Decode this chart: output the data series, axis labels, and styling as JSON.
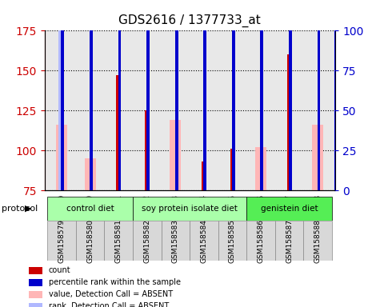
{
  "title": "GDS2616 / 1377733_at",
  "samples": [
    "GSM158579",
    "GSM158580",
    "GSM158581",
    "GSM158582",
    "GSM158583",
    "GSM158584",
    "GSM158585",
    "GSM158586",
    "GSM158587",
    "GSM158588"
  ],
  "groups": [
    {
      "label": "control diet",
      "color": "#90EE90",
      "samples": [
        0,
        1,
        2
      ]
    },
    {
      "label": "soy protein isolate diet",
      "color": "#90EE90",
      "samples": [
        3,
        4,
        5,
        6
      ]
    },
    {
      "label": "genistein diet",
      "color": "#00CC00",
      "samples": [
        7,
        8,
        9
      ]
    }
  ],
  "group_spans": [
    {
      "start": 0,
      "end": 2,
      "label": "control diet",
      "color": "#aaffaa"
    },
    {
      "start": 3,
      "end": 6,
      "label": "soy protein isolate diet",
      "color": "#aaffaa"
    },
    {
      "start": 7,
      "end": 9,
      "label": "genistein diet",
      "color": "#55ee55"
    }
  ],
  "count_values": [
    null,
    null,
    147,
    125,
    null,
    93,
    101,
    null,
    160,
    null
  ],
  "percentile_values": [
    107,
    103,
    112,
    109,
    108,
    104,
    104,
    103,
    112,
    107
  ],
  "absent_value_values": [
    116,
    95,
    null,
    null,
    119,
    null,
    null,
    102,
    null,
    116
  ],
  "absent_rank_values": [
    106,
    null,
    null,
    null,
    null,
    null,
    null,
    null,
    null,
    null
  ],
  "ylim_left": [
    75,
    175
  ],
  "ylim_right": [
    0,
    100
  ],
  "yticks_left": [
    75,
    100,
    125,
    150,
    175
  ],
  "yticks_right": [
    0,
    25,
    50,
    75,
    100
  ],
  "bar_width": 0.35,
  "background_color": "#ffffff",
  "plot_bg": "#e8e8e8",
  "grid_color": "#000000",
  "left_axis_color": "#cc0000",
  "right_axis_color": "#0000cc",
  "count_color": "#cc0000",
  "percentile_color": "#0000cc",
  "absent_value_color": "#ffb6b6",
  "absent_rank_color": "#b0b8ff"
}
